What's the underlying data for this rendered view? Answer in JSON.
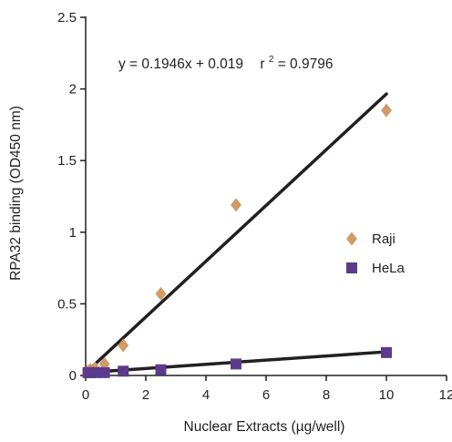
{
  "chart_data": {
    "type": "scatter",
    "xlabel": "Nuclear Extracts (µg/well)",
    "ylabel": "RPA32 binding (OD450 nm)",
    "xlim": [
      0,
      12
    ],
    "ylim": [
      0,
      2.5
    ],
    "xticks": [
      "0",
      "2",
      "4",
      "6",
      "8",
      "10",
      "12"
    ],
    "yticks": [
      "0",
      "0.5",
      "1",
      "1.5",
      "2",
      "2.5"
    ],
    "xtick_values": [
      0,
      2,
      4,
      6,
      8,
      10,
      12
    ],
    "ytick_values": [
      0,
      0.5,
      1,
      1.5,
      2,
      2.5
    ],
    "grid": false,
    "legend_position": "right",
    "annotation": {
      "equation": "y = 0.1946x + 0.019",
      "r_label": "r",
      "r_exponent": "2",
      "r_value": " = 0.9796"
    },
    "series": [
      {
        "name": "Raji",
        "marker": "diamond",
        "color": "#d19a66",
        "x": [
          0.078,
          0.156,
          0.3125,
          0.625,
          1.25,
          2.5,
          5,
          10
        ],
        "y": [
          0.03,
          0.04,
          0.05,
          0.08,
          0.21,
          0.57,
          1.19,
          1.85
        ],
        "fit": {
          "slope": 0.1946,
          "intercept": 0.019,
          "x_range": [
            0,
            10
          ]
        }
      },
      {
        "name": "HeLa",
        "marker": "square",
        "color": "#5b3b8c",
        "x": [
          0.078,
          0.156,
          0.3125,
          0.625,
          1.25,
          2.5,
          5,
          10
        ],
        "y": [
          0.02,
          0.02,
          0.02,
          0.02,
          0.03,
          0.04,
          0.08,
          0.16
        ],
        "fit": {
          "slope": 0.0145,
          "intercept": 0.02,
          "x_range": [
            0,
            10
          ]
        }
      }
    ],
    "line_color": "#231f20",
    "axis_color": "#231f20"
  }
}
